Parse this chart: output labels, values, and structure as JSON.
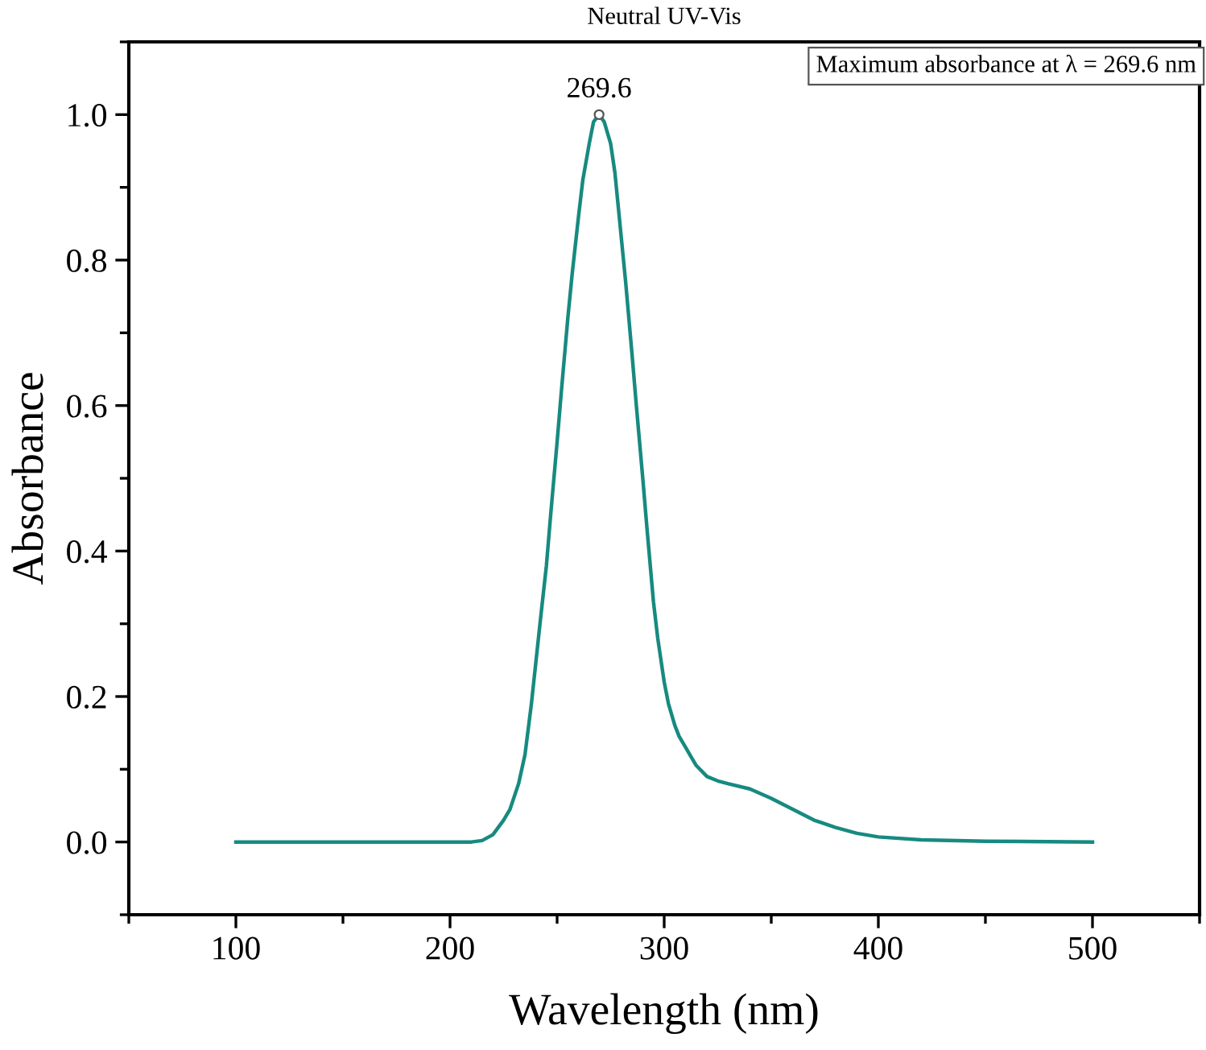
{
  "chart_data": {
    "type": "line",
    "title": "Neutral UV-Vis",
    "xlabel": "Wavelength (nm)",
    "ylabel": "Absorbance",
    "xlim": [
      50,
      550
    ],
    "xticks": [
      100,
      200,
      300,
      400,
      500
    ],
    "ylim": [
      -0.1,
      1.1
    ],
    "yticks": [
      {
        "value": 0,
        "label": "0.0"
      },
      0.2,
      0.4,
      0.6,
      0.8,
      {
        "value": 1,
        "label": "1.0"
      }
    ],
    "grid": false,
    "legend": false,
    "marker": "none",
    "line_style": "solid",
    "series": [
      {
        "color": "#178a80",
        "x": [
          100,
          150,
          200,
          210,
          215,
          220,
          225,
          228,
          232,
          235,
          238,
          242,
          245,
          247,
          250,
          252,
          255,
          257,
          260,
          262,
          265,
          267,
          269.6,
          272,
          275,
          277,
          280,
          282,
          285,
          287,
          290,
          292,
          295,
          297,
          300,
          302,
          305,
          307,
          310,
          312,
          315,
          320,
          325,
          330,
          340,
          350,
          360,
          370,
          380,
          390,
          400,
          420,
          450,
          500
        ],
        "values": [
          0,
          0,
          0,
          0,
          0.002,
          0.01,
          0.03,
          0.045,
          0.08,
          0.12,
          0.19,
          0.3,
          0.38,
          0.45,
          0.55,
          0.62,
          0.72,
          0.78,
          0.86,
          0.91,
          0.96,
          0.99,
          1.0,
          0.99,
          0.96,
          0.92,
          0.83,
          0.77,
          0.67,
          0.6,
          0.5,
          0.43,
          0.33,
          0.28,
          0.22,
          0.19,
          0.16,
          0.145,
          0.13,
          0.12,
          0.105,
          0.09,
          0.084,
          0.08,
          0.073,
          0.06,
          0.045,
          0.03,
          0.02,
          0.012,
          0.007,
          0.003,
          0.001,
          0
        ]
      }
    ],
    "annotations": [
      {
        "text": "269.6",
        "x": 269.6,
        "y": 1.0
      },
      "Maximum absorbance at λ = 269.6 nm"
    ]
  }
}
